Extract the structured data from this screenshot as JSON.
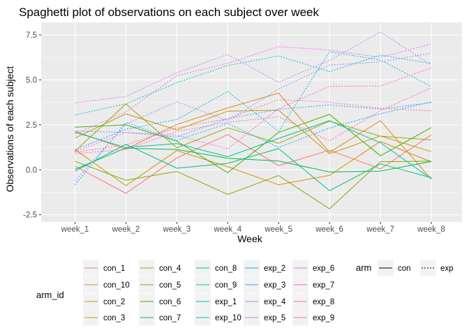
{
  "chart_data": {
    "type": "line",
    "title": "Spaghetti plot of observations on each subject over week",
    "xlabel": "Week",
    "ylabel": "Observations of each subject",
    "categories": [
      "week_1",
      "week_2",
      "week_3",
      "week_4",
      "week_5",
      "week_6",
      "week_7",
      "week_8"
    ],
    "ylim": [
      -2.9,
      8.2
    ],
    "yticks": [
      -2.5,
      0.0,
      2.5,
      5.0,
      7.5
    ],
    "ytick_labels": [
      "-2.5",
      "0.0",
      "2.5",
      "5.0",
      "7.5"
    ],
    "grid": true,
    "series": [
      {
        "name": "con_1",
        "arm": "con",
        "color": "#F8766D",
        "values": [
          0.2,
          -1.31,
          0.66,
          1.96,
          0.23,
          1.09,
          0.05,
          1.94
        ]
      },
      {
        "name": "con_10",
        "arm": "con",
        "color": "#E7851E",
        "values": [
          2.14,
          1.15,
          2.52,
          3.44,
          4.26,
          0.97,
          2.73,
          -0.53
        ]
      },
      {
        "name": "con_2",
        "arm": "con",
        "color": "#D89000",
        "values": [
          1.13,
          -0.88,
          1.07,
          0.17,
          -0.83,
          -0.31,
          1.58,
          0.44
        ]
      },
      {
        "name": "con_3",
        "arm": "con",
        "color": "#C09B00",
        "values": [
          1.77,
          3.11,
          2.22,
          3.26,
          3.31,
          0.89,
          1.88,
          1.01
        ]
      },
      {
        "name": "con_4",
        "arm": "con",
        "color": "#A3A500",
        "values": [
          1.04,
          3.66,
          1.22,
          2.33,
          1.47,
          2.7,
          1.87,
          1.66
        ]
      },
      {
        "name": "con_5",
        "arm": "con",
        "color": "#7CAE00",
        "values": [
          0.47,
          -0.58,
          -0.09,
          -1.37,
          -0.32,
          -2.17,
          0.45,
          0.48
        ]
      },
      {
        "name": "con_6",
        "arm": "con",
        "color": "#39B600",
        "values": [
          2.37,
          2.5,
          1.59,
          -0.16,
          2.08,
          3.08,
          0.78,
          2.35
        ]
      },
      {
        "name": "con_7",
        "arm": "con",
        "color": "#00BB4E",
        "values": [
          0.03,
          1.21,
          1.13,
          0.64,
          0.49,
          -0.12,
          -0.07,
          0.46
        ]
      },
      {
        "name": "con_8",
        "arm": "con",
        "color": "#00BF7D",
        "values": [
          -0.08,
          1.42,
          0.09,
          0.36,
          1.18,
          -1.16,
          0.33,
          -0.44
        ]
      },
      {
        "name": "con_9",
        "arm": "con",
        "color": "#00C1A3",
        "values": [
          2.08,
          1.24,
          1.46,
          0.73,
          1.74,
          2.73,
          1.5,
          -0.5
        ]
      },
      {
        "name": "exp_1",
        "arm": "exp",
        "color": "#00BFC4",
        "values": [
          3.05,
          3.67,
          4.84,
          5.8,
          6.33,
          5.46,
          6.38,
          5.91
        ]
      },
      {
        "name": "exp_10",
        "arm": "exp",
        "color": "#00BAE0",
        "values": [
          1.12,
          2.25,
          2.8,
          4.35,
          2.14,
          6.57,
          6.1,
          4.63
        ]
      },
      {
        "name": "exp_2",
        "arm": "exp",
        "color": "#00B0F6",
        "values": [
          -0.84,
          2.63,
          1.64,
          2.58,
          1.24,
          2.32,
          3.11,
          3.78
        ]
      },
      {
        "name": "exp_3",
        "arm": "exp",
        "color": "#35A2FF",
        "values": [
          2.15,
          2.08,
          1.82,
          2.84,
          3.36,
          3.61,
          3.37,
          3.74
        ]
      },
      {
        "name": "exp_4",
        "arm": "exp",
        "color": "#9590FF",
        "values": [
          -0.62,
          2.54,
          3.78,
          2.73,
          4.49,
          5.82,
          6.0,
          6.49
        ]
      },
      {
        "name": "exp_5",
        "arm": "exp",
        "color": "#C77CFF",
        "values": [
          3.72,
          4.08,
          5.4,
          6.41,
          4.87,
          6.09,
          7.66,
          5.83
        ]
      },
      {
        "name": "exp_6",
        "arm": "exp",
        "color": "#E76BF3",
        "values": [
          1.99,
          3.22,
          5.24,
          5.92,
          6.85,
          6.66,
          6.25,
          7.0
        ]
      },
      {
        "name": "exp_7",
        "arm": "exp",
        "color": "#FA62DB",
        "values": [
          1.01,
          2.08,
          1.92,
          1.16,
          3.4,
          4.64,
          4.66,
          5.67
        ]
      },
      {
        "name": "exp_8",
        "arm": "exp",
        "color": "#FF62BC",
        "values": [
          0.9,
          1.13,
          2.13,
          2.64,
          2.95,
          1.61,
          3.29,
          4.56
        ]
      },
      {
        "name": "exp_9",
        "arm": "exp",
        "color": "#FF6C91",
        "values": [
          0.98,
          1.38,
          2.33,
          2.84,
          3.9,
          3.76,
          3.42,
          3.28
        ]
      }
    ],
    "legend_arm_id": {
      "title": "arm_id",
      "columns": [
        [
          "con_1",
          "con_10",
          "con_2",
          "con_3"
        ],
        [
          "con_4",
          "con_5",
          "con_6",
          "con_7"
        ],
        [
          "con_8",
          "con_9",
          "exp_1",
          "exp_10"
        ],
        [
          "exp_2",
          "exp_3",
          "exp_4",
          "exp_5"
        ],
        [
          "exp_6",
          "exp_7",
          "exp_8",
          "exp_9"
        ]
      ]
    },
    "legend_arm": {
      "title": "arm",
      "items": [
        {
          "label": "con",
          "linetype": "solid"
        },
        {
          "label": "exp",
          "linetype": "dotted"
        }
      ]
    },
    "legend_position": "bottom"
  }
}
